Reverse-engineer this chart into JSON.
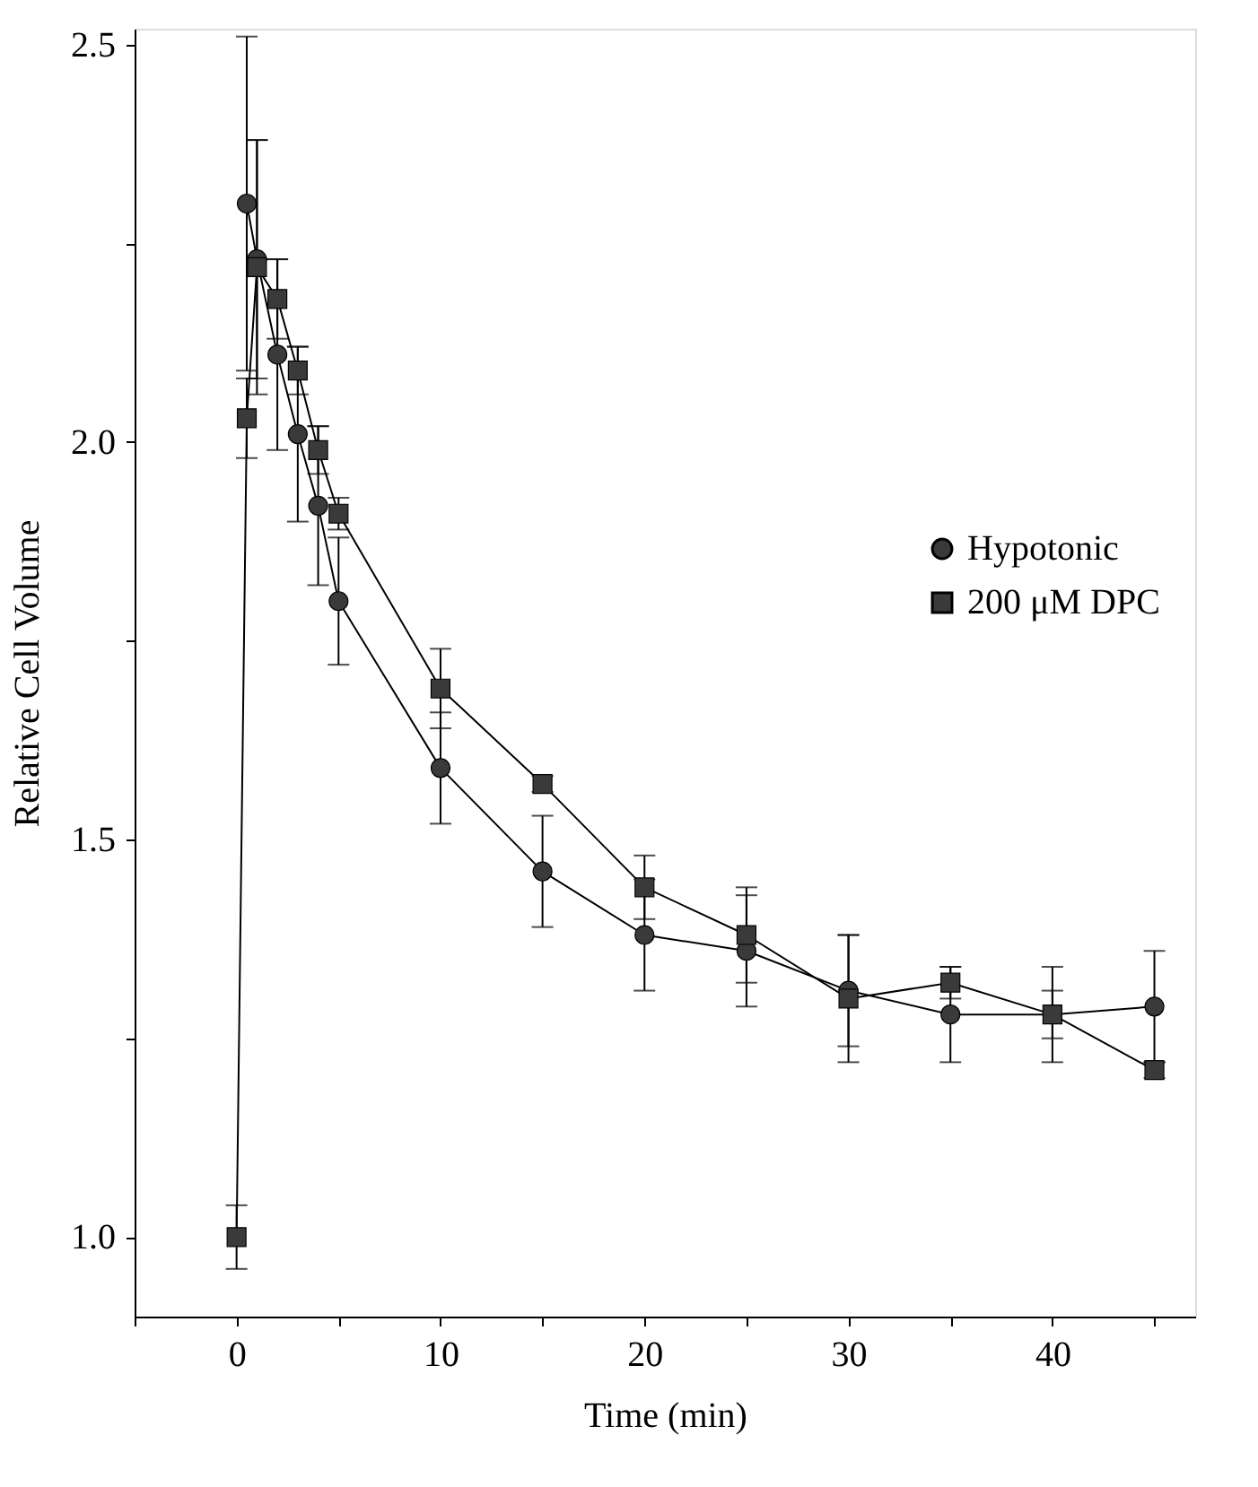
{
  "chart_data": {
    "type": "line",
    "xlabel": "Time (min)",
    "ylabel": "Relative Cell Volume",
    "xlim": [
      -5,
      47
    ],
    "ylim": [
      0.9,
      2.52
    ],
    "xticks": [
      {
        "value": -5,
        "label": null
      },
      0,
      {
        "value": 5,
        "label": null
      },
      10,
      {
        "value": 15,
        "label": null
      },
      20,
      {
        "value": 25,
        "label": null
      },
      30,
      {
        "value": 35,
        "label": null
      },
      40,
      {
        "value": 45,
        "label": null
      }
    ],
    "yticks": [
      {
        "value": 1.0,
        "label": "1.0"
      },
      {
        "value": 1.25,
        "label": null
      },
      {
        "value": 1.5,
        "label": "1.5"
      },
      {
        "value": 1.75,
        "label": null
      },
      {
        "value": 2.0,
        "label": "2.0"
      },
      {
        "value": 2.25,
        "label": null
      },
      {
        "value": 2.5,
        "label": "2.5"
      }
    ],
    "grid": false,
    "legend": "right",
    "line_style": "solid",
    "series": [
      {
        "name": "Hypotonic",
        "color": "#3a3a3a",
        "marker": "circle",
        "x": [
          0.5,
          1,
          2,
          3,
          4,
          5,
          10,
          15,
          20,
          25,
          30,
          35,
          40,
          45
        ],
        "values": [
          2.3,
          2.23,
          2.11,
          2.01,
          1.92,
          1.8,
          1.59,
          1.46,
          1.38,
          1.36,
          1.31,
          1.28,
          1.28,
          1.29
        ],
        "errors": [
          0.21,
          0.15,
          0.12,
          0.11,
          0.1,
          0.08,
          0.07,
          0.07,
          0.07,
          0.07,
          0.07,
          0.06,
          0.06,
          0.07
        ]
      },
      {
        "name": "200 μM DPC",
        "color": "#3a3a3a",
        "marker": "square",
        "x": [
          0,
          0.5,
          1,
          2,
          3,
          4,
          5,
          10,
          15,
          20,
          25,
          30,
          35,
          40,
          45
        ],
        "values": [
          1.0,
          2.03,
          2.22,
          2.18,
          2.09,
          1.99,
          1.91,
          1.69,
          1.57,
          1.44,
          1.38,
          1.3,
          1.32,
          1.28,
          1.21
        ],
        "errors": [
          0.04,
          0.05,
          0.16,
          0.05,
          0.03,
          0.03,
          0.02,
          0.05,
          0.01,
          0.04,
          0.06,
          0.08,
          0.02,
          0.03,
          0.01
        ]
      }
    ]
  }
}
